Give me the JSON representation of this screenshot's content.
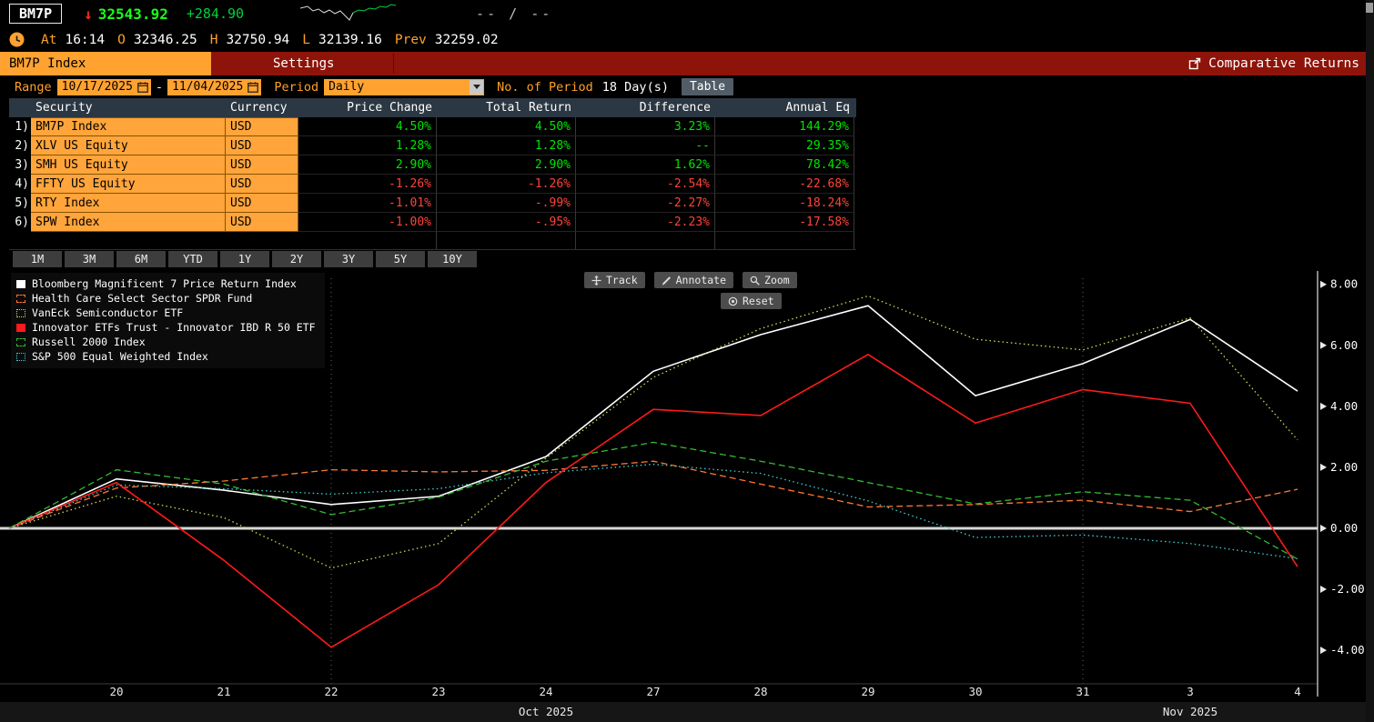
{
  "topbar": {
    "ticker": "BM7P",
    "price": "32543.92",
    "change": "+284.90",
    "bid_ask": "-- / --"
  },
  "quote_line": {
    "at_label": "At",
    "at_value": "16:14",
    "open_label": "O",
    "open_value": "32346.25",
    "high_label": "H",
    "high_value": "32750.94",
    "low_label": "L",
    "low_value": "32139.16",
    "prev_label": "Prev",
    "prev_value": "32259.02"
  },
  "menubar": {
    "security_tab": "BM7P Index",
    "settings": "Settings",
    "function_title": "Comparative Returns"
  },
  "controls": {
    "range_label": "Range",
    "range_start": "10/17/2025",
    "range_separator": "-",
    "range_end": "11/04/2025",
    "period_label": "Period",
    "period_value": "Daily",
    "no_of_period_label": "No. of Period",
    "no_of_period_value": "18 Day(s)",
    "table_button": "Table"
  },
  "colors": {
    "amber": "#ffa230",
    "up_green": "#00e600",
    "down_red": "#ff4438",
    "menubar_red": "#8e1309"
  },
  "table": {
    "columns": [
      "Security",
      "Currency",
      "Price Change",
      "Total Return",
      "Difference",
      "Annual Eq"
    ],
    "rows": [
      {
        "num": "1)",
        "security": "BM7P Index",
        "currency": "USD",
        "price_change": "4.50%",
        "total_return": "4.50%",
        "difference": "3.23%",
        "annual_eq": "144.29%",
        "trend": "up"
      },
      {
        "num": "2)",
        "security": "XLV US Equity",
        "currency": "USD",
        "price_change": "1.28%",
        "total_return": "1.28%",
        "difference": "--",
        "annual_eq": "29.35%",
        "trend": "up"
      },
      {
        "num": "3)",
        "security": "SMH US Equity",
        "currency": "USD",
        "price_change": "2.90%",
        "total_return": "2.90%",
        "difference": "1.62%",
        "annual_eq": "78.42%",
        "trend": "up"
      },
      {
        "num": "4)",
        "security": "FFTY US Equity",
        "currency": "USD",
        "price_change": "-1.26%",
        "total_return": "-1.26%",
        "difference": "-2.54%",
        "annual_eq": "-22.68%",
        "trend": "down"
      },
      {
        "num": "5)",
        "security": "RTY Index",
        "currency": "USD",
        "price_change": "-1.01%",
        "total_return": "-.99%",
        "difference": "-2.27%",
        "annual_eq": "-18.24%",
        "trend": "down"
      },
      {
        "num": "6)",
        "security": "SPW Index",
        "currency": "USD",
        "price_change": "-1.00%",
        "total_return": "-.95%",
        "difference": "-2.23%",
        "annual_eq": "-17.58%",
        "trend": "down"
      }
    ]
  },
  "period_buttons": [
    "1M",
    "3M",
    "6M",
    "YTD",
    "1Y",
    "2Y",
    "3Y",
    "5Y",
    "10Y"
  ],
  "chart_tools": {
    "track": "Track",
    "annotate": "Annotate",
    "zoom": "Zoom",
    "reset": "Reset"
  },
  "chart_data": {
    "type": "line",
    "title": "Comparative Returns",
    "legend_position": "top-left",
    "x_points": [
      "10/17",
      "10/20",
      "10/21",
      "10/22",
      "10/23",
      "10/24",
      "10/27",
      "10/28",
      "10/29",
      "10/30",
      "10/31",
      "11/03",
      "11/04"
    ],
    "x_tick_labels": [
      "20",
      "21",
      "22",
      "23",
      "24",
      "27",
      "28",
      "29",
      "30",
      "31",
      "3",
      "4"
    ],
    "month_labels": [
      {
        "label": "Oct 2025",
        "point_index": 5
      },
      {
        "label": "Nov 2025",
        "point_index": 11
      }
    ],
    "y_ticks": [
      "8.00",
      "6.00",
      "4.00",
      "2.00",
      "0.00",
      "-2.00",
      "-4.00"
    ],
    "y_tick_values": [
      8,
      6,
      4,
      2,
      0,
      -2,
      -4
    ],
    "ylim": [
      -5.1,
      8.2
    ],
    "zero_line": 0,
    "grid_vertical_point_indices": [
      3,
      10
    ],
    "series": [
      {
        "name": "Bloomberg Magnificent 7 Price Return Index",
        "color": "#ffffff",
        "style": "solid",
        "values": [
          0,
          1.62,
          1.25,
          0.78,
          1.05,
          2.35,
          5.15,
          6.35,
          7.3,
          4.35,
          5.4,
          6.85,
          4.5
        ]
      },
      {
        "name": "Health Care Select Sector SPDR Fund",
        "color": "#ff7733",
        "style": "dashed",
        "values": [
          0,
          1.32,
          1.55,
          1.92,
          1.85,
          1.9,
          2.2,
          1.45,
          0.7,
          0.78,
          0.92,
          0.55,
          1.28
        ]
      },
      {
        "name": "VanEck Semiconductor ETF",
        "color": "#d6d65a",
        "style": "dotted",
        "values": [
          0,
          1.05,
          0.35,
          -1.3,
          -0.5,
          2.3,
          4.95,
          6.55,
          7.62,
          6.2,
          5.85,
          6.9,
          2.9
        ]
      },
      {
        "name": "Innovator ETFs Trust - Innovator IBD R 50 ETF",
        "color": "#ff1a1a",
        "style": "solid",
        "values": [
          0,
          1.5,
          -1.05,
          -3.9,
          -1.85,
          1.5,
          3.9,
          3.7,
          5.7,
          3.45,
          4.55,
          4.1,
          -1.26
        ]
      },
      {
        "name": "Russell 2000 Index",
        "color": "#33bb33",
        "style": "dashed",
        "values": [
          0,
          1.92,
          1.45,
          0.45,
          1.02,
          2.2,
          2.82,
          2.2,
          1.5,
          0.8,
          1.2,
          0.92,
          -1.01
        ]
      },
      {
        "name": "S&P 500 Equal Weighted Index",
        "color": "#40d0d0",
        "style": "dotted",
        "values": [
          0,
          1.42,
          1.3,
          1.12,
          1.3,
          1.82,
          2.1,
          1.8,
          0.9,
          -0.3,
          -0.22,
          -0.5,
          -1.0
        ]
      }
    ]
  }
}
